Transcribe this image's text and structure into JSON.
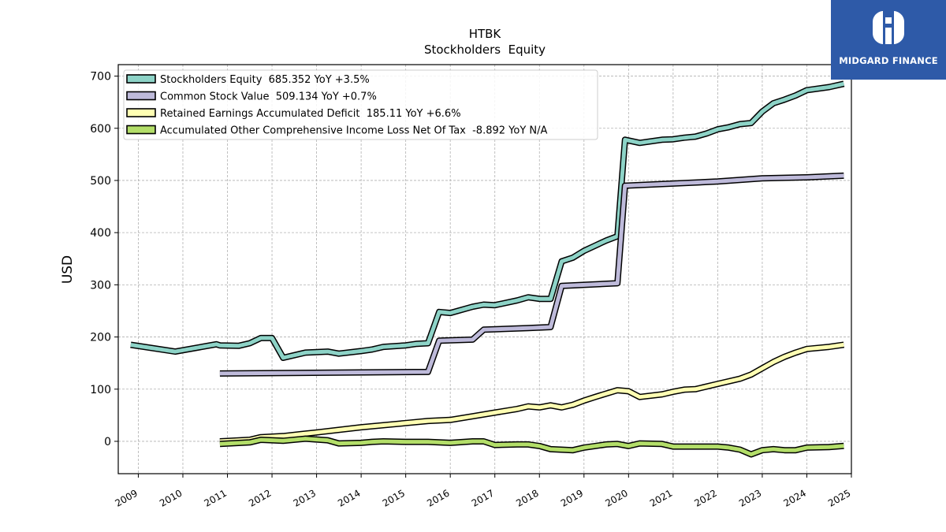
{
  "logo": {
    "name": "MIDGARD FINANCE",
    "bg": "#2e5aa8"
  },
  "chart_data": {
    "type": "line",
    "title": "HTBK",
    "subtitle": "Stockholders  Equity",
    "ylabel": "USD",
    "xlabel": "",
    "xlim": [
      2008.55,
      2025.0
    ],
    "ylim": [
      -62,
      722
    ],
    "yticks": [
      0,
      100,
      200,
      300,
      400,
      500,
      600,
      700
    ],
    "xticks": [
      2009,
      2010,
      2011,
      2012,
      2013,
      2014,
      2015,
      2016,
      2017,
      2018,
      2019,
      2020,
      2021,
      2022,
      2023,
      2024,
      2025
    ],
    "xtick_labels": [
      "2009",
      "2010",
      "2011",
      "2012",
      "2013",
      "2014",
      "2015",
      "2016",
      "2017",
      "2018",
      "2019",
      "2020",
      "2021",
      "2022",
      "2023",
      "2024",
      "2025"
    ],
    "grid": true,
    "legend_position": "top-left",
    "series": [
      {
        "name": "Stockholders Equity",
        "legend": "Stockholders Equity  685.352 YoY +3.5%",
        "color": "#8dd3c7",
        "points": [
          [
            2008.83,
            185
          ],
          [
            2009.83,
            172
          ],
          [
            2010.75,
            186
          ],
          [
            2010.83,
            184
          ],
          [
            2011.25,
            183
          ],
          [
            2011.5,
            188
          ],
          [
            2011.75,
            198
          ],
          [
            2012.0,
            198
          ],
          [
            2012.25,
            160
          ],
          [
            2012.75,
            170
          ],
          [
            2013.25,
            172
          ],
          [
            2013.5,
            168
          ],
          [
            2014.0,
            173
          ],
          [
            2014.25,
            176
          ],
          [
            2014.5,
            181
          ],
          [
            2015.0,
            184
          ],
          [
            2015.25,
            187
          ],
          [
            2015.5,
            188
          ],
          [
            2015.75,
            248
          ],
          [
            2016.0,
            246
          ],
          [
            2016.5,
            258
          ],
          [
            2016.75,
            262
          ],
          [
            2017.0,
            261
          ],
          [
            2017.5,
            270
          ],
          [
            2017.75,
            276
          ],
          [
            2018.0,
            273
          ],
          [
            2018.25,
            273
          ],
          [
            2018.5,
            345
          ],
          [
            2018.75,
            352
          ],
          [
            2019.0,
            365
          ],
          [
            2019.25,
            375
          ],
          [
            2019.5,
            385
          ],
          [
            2019.75,
            393
          ],
          [
            2019.92,
            578
          ],
          [
            2020.25,
            572
          ],
          [
            2020.75,
            578
          ],
          [
            2021.0,
            579
          ],
          [
            2021.25,
            582
          ],
          [
            2021.5,
            584
          ],
          [
            2021.75,
            590
          ],
          [
            2022.0,
            598
          ],
          [
            2022.25,
            602
          ],
          [
            2022.5,
            608
          ],
          [
            2022.75,
            610
          ],
          [
            2023.0,
            632
          ],
          [
            2023.25,
            648
          ],
          [
            2023.5,
            655
          ],
          [
            2023.75,
            663
          ],
          [
            2024.0,
            673
          ],
          [
            2024.5,
            679
          ],
          [
            2024.83,
            685.352
          ]
        ]
      },
      {
        "name": "Common Stock Value",
        "legend": "Common Stock Value  509.134 YoY +0.7%",
        "color": "#bebada",
        "points": [
          [
            2010.83,
            130
          ],
          [
            2015.5,
            133
          ],
          [
            2015.75,
            193
          ],
          [
            2016.5,
            195
          ],
          [
            2016.75,
            214
          ],
          [
            2017.75,
            217
          ],
          [
            2018.25,
            219
          ],
          [
            2018.5,
            298
          ],
          [
            2019.75,
            303
          ],
          [
            2019.92,
            490
          ],
          [
            2021.0,
            494
          ],
          [
            2022.0,
            498
          ],
          [
            2023.0,
            504
          ],
          [
            2024.0,
            506
          ],
          [
            2024.83,
            509.134
          ]
        ]
      },
      {
        "name": "Retained Earnings Accumulated Deficit",
        "legend": "Retained Earnings Accumulated Deficit  185.11 YoY +6.6%",
        "color": "#ffffb3",
        "points": [
          [
            2010.83,
            0
          ],
          [
            2011.5,
            3
          ],
          [
            2011.75,
            8
          ],
          [
            2012.25,
            10
          ],
          [
            2013.0,
            17
          ],
          [
            2014.0,
            27
          ],
          [
            2015.0,
            35
          ],
          [
            2015.5,
            39
          ],
          [
            2016.0,
            41
          ],
          [
            2016.5,
            48
          ],
          [
            2017.0,
            55
          ],
          [
            2017.5,
            62
          ],
          [
            2017.75,
            67
          ],
          [
            2018.0,
            65
          ],
          [
            2018.25,
            69
          ],
          [
            2018.5,
            65
          ],
          [
            2018.75,
            70
          ],
          [
            2019.0,
            78
          ],
          [
            2019.25,
            85
          ],
          [
            2019.75,
            98
          ],
          [
            2020.0,
            96
          ],
          [
            2020.25,
            85
          ],
          [
            2020.75,
            90
          ],
          [
            2021.0,
            95
          ],
          [
            2021.25,
            99
          ],
          [
            2021.5,
            100
          ],
          [
            2022.0,
            110
          ],
          [
            2022.5,
            120
          ],
          [
            2022.75,
            128
          ],
          [
            2023.0,
            140
          ],
          [
            2023.25,
            152
          ],
          [
            2023.5,
            162
          ],
          [
            2023.75,
            170
          ],
          [
            2024.0,
            177
          ],
          [
            2024.5,
            181
          ],
          [
            2024.83,
            185.11
          ]
        ]
      },
      {
        "name": "Accumulated Other Comprehensive Income Loss Net Of Tax",
        "legend": "Accumulated Other Comprehensive Income Loss Net Of Tax  -8.892 YoY N/A",
        "color": "#b3de69",
        "points": [
          [
            2010.83,
            -5
          ],
          [
            2011.5,
            -2
          ],
          [
            2011.75,
            3
          ],
          [
            2012.0,
            2
          ],
          [
            2012.25,
            1
          ],
          [
            2012.75,
            5
          ],
          [
            2013.25,
            2
          ],
          [
            2013.5,
            -4
          ],
          [
            2014.0,
            -3
          ],
          [
            2014.25,
            -1
          ],
          [
            2014.5,
            0
          ],
          [
            2015.0,
            -1
          ],
          [
            2015.5,
            -1
          ],
          [
            2015.75,
            -2
          ],
          [
            2016.0,
            -3
          ],
          [
            2016.5,
            0
          ],
          [
            2016.75,
            0
          ],
          [
            2017.0,
            -7
          ],
          [
            2017.5,
            -6
          ],
          [
            2017.75,
            -6
          ],
          [
            2018.0,
            -9
          ],
          [
            2018.25,
            -15
          ],
          [
            2018.75,
            -17
          ],
          [
            2019.0,
            -12
          ],
          [
            2019.25,
            -9
          ],
          [
            2019.5,
            -6
          ],
          [
            2019.75,
            -5
          ],
          [
            2020.0,
            -9
          ],
          [
            2020.25,
            -4
          ],
          [
            2020.75,
            -5
          ],
          [
            2021.0,
            -10
          ],
          [
            2021.5,
            -10
          ],
          [
            2022.0,
            -10
          ],
          [
            2022.25,
            -12
          ],
          [
            2022.5,
            -16
          ],
          [
            2022.75,
            -25
          ],
          [
            2023.0,
            -17
          ],
          [
            2023.25,
            -15
          ],
          [
            2023.5,
            -17
          ],
          [
            2023.75,
            -17
          ],
          [
            2024.0,
            -12
          ],
          [
            2024.5,
            -11
          ],
          [
            2024.83,
            -8.892
          ]
        ]
      }
    ]
  }
}
